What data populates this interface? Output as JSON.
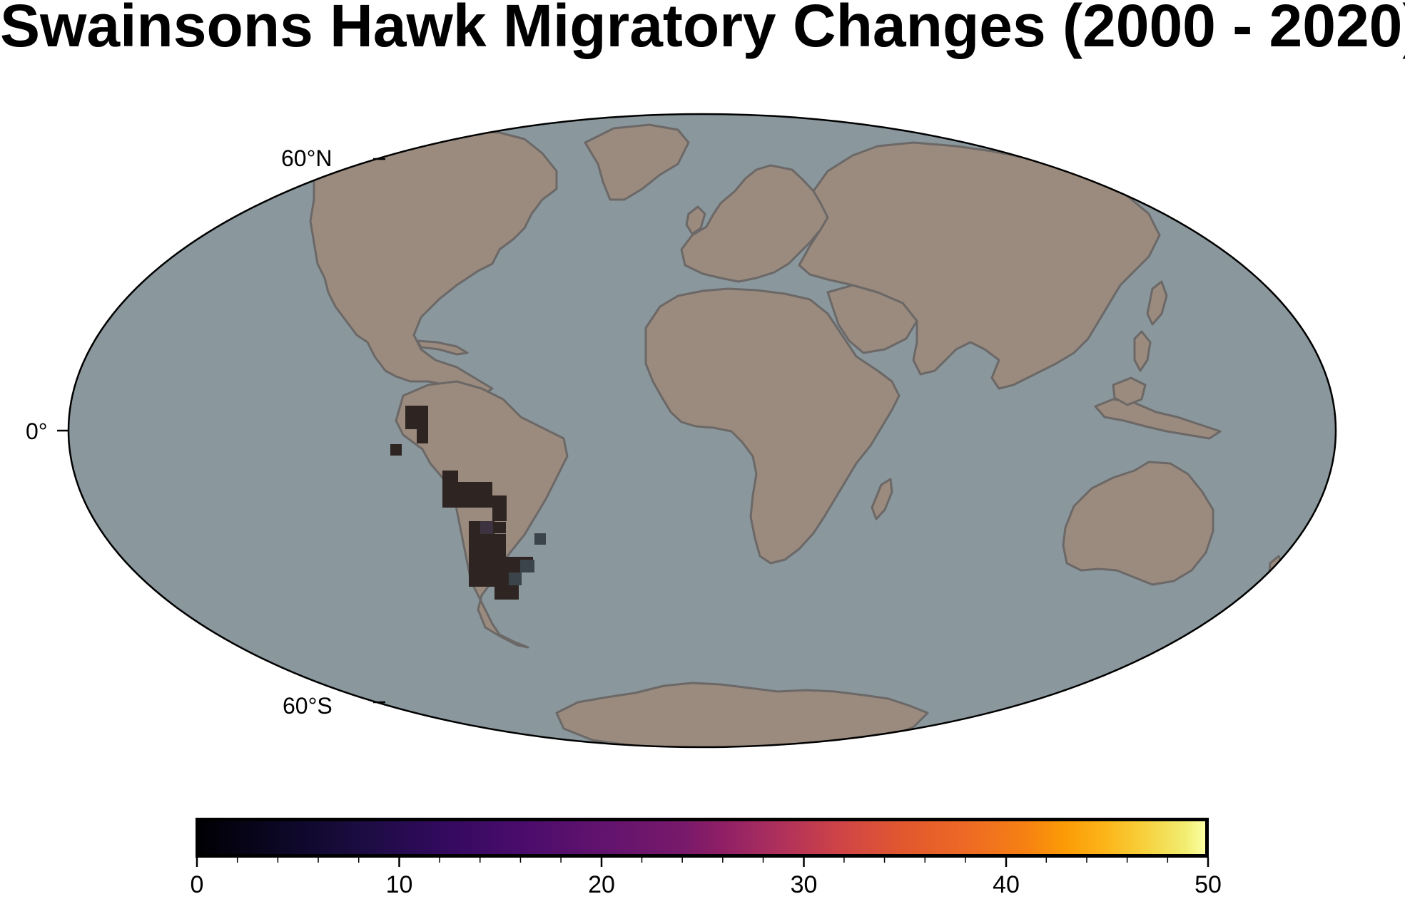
{
  "title": "Swainsons Hawk Migratory Changes (2000 - 2020)",
  "map": {
    "projection": "Mollweide",
    "ocean_color": "#8a979c",
    "land_color": "#9b8b7e",
    "coastline_color": "#6b6867",
    "lat_labels": {
      "north": "60°N",
      "equator": "0°",
      "south": "60°S"
    },
    "data_cell_colors": {
      "low": "#2e2522",
      "mid": "#3d3340",
      "water": "#3a444a"
    }
  },
  "colorbar": {
    "colormap": "inferno",
    "min": 0,
    "max": 50,
    "ticks": [
      "0",
      "10",
      "20",
      "30",
      "40",
      "50"
    ]
  }
}
